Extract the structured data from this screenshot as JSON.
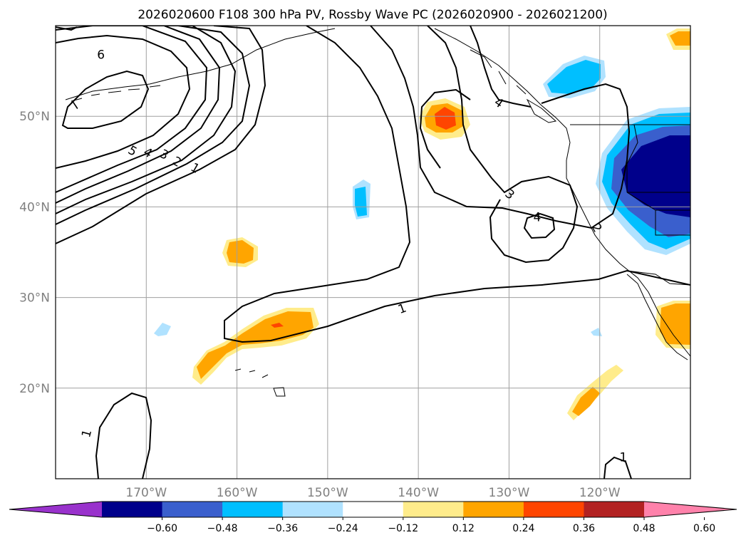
{
  "chart_data": {
    "type": "heatmap",
    "title": "2026020600 F108 300 hPa PV, Rossby Wave PC (2026020900 - 2026021200)",
    "xlabel": "",
    "ylabel": "",
    "lon_range": [
      -180,
      -110
    ],
    "lat_range": [
      10,
      60
    ],
    "lon_ticks": [
      {
        "value": -170,
        "label": "170°W"
      },
      {
        "value": -160,
        "label": "160°W"
      },
      {
        "value": -150,
        "label": "150°W"
      },
      {
        "value": -140,
        "label": "140°W"
      },
      {
        "value": -130,
        "label": "130°W"
      },
      {
        "value": -120,
        "label": "120°W"
      }
    ],
    "lat_ticks": [
      {
        "value": 20,
        "label": "20°N"
      },
      {
        "value": 30,
        "label": "30°N"
      },
      {
        "value": 40,
        "label": "40°N"
      },
      {
        "value": 50,
        "label": "50°N"
      }
    ],
    "colorbar": {
      "levels": [
        -0.6,
        -0.48,
        -0.36,
        -0.24,
        -0.12,
        0.12,
        0.24,
        0.36,
        0.48,
        0.6
      ],
      "tick_labels": [
        "−0.60",
        "−0.48",
        "−0.36",
        "−0.24",
        "−0.12",
        "0.12",
        "0.24",
        "0.36",
        "0.48",
        "0.60"
      ],
      "colors": [
        "#9932cc",
        "#00008b",
        "#3a5fcd",
        "#00bfff",
        "#b0e2ff",
        "#ffffff",
        "#ffec8b",
        "#ffa500",
        "#ff4500",
        "#b22222",
        "#ff82ab"
      ]
    },
    "contour_labels": [
      {
        "text": "6",
        "lon": -175,
        "lat": 56.8,
        "rot": 0
      },
      {
        "text": "7",
        "lon": -177.9,
        "lat": 51.2,
        "rot": -55
      },
      {
        "text": "5",
        "lon": -171.5,
        "lat": 46.2,
        "rot": 30
      },
      {
        "text": "4",
        "lon": -169.8,
        "lat": 46.0,
        "rot": 30
      },
      {
        "text": "3",
        "lon": -168.0,
        "lat": 45.8,
        "rot": 30
      },
      {
        "text": "2",
        "lon": -166.6,
        "lat": 45.0,
        "rot": 30
      },
      {
        "text": "1",
        "lon": -164.6,
        "lat": 44.3,
        "rot": 30
      },
      {
        "text": "4",
        "lon": -131.1,
        "lat": 51.5,
        "rot": 35
      },
      {
        "text": "3",
        "lon": -129.9,
        "lat": 41.4,
        "rot": 40
      },
      {
        "text": "4",
        "lon": -126.9,
        "lat": 38.9,
        "rot": 0
      },
      {
        "text": "2",
        "lon": -120.3,
        "lat": 37.7,
        "rot": 60
      },
      {
        "text": "1",
        "lon": -141.8,
        "lat": 28.8,
        "rot": -20
      },
      {
        "text": "1",
        "lon": -176.6,
        "lat": 15.0,
        "rot": -75
      },
      {
        "text": "1",
        "lon": -117.4,
        "lat": 12.4,
        "rot": 0
      }
    ]
  }
}
